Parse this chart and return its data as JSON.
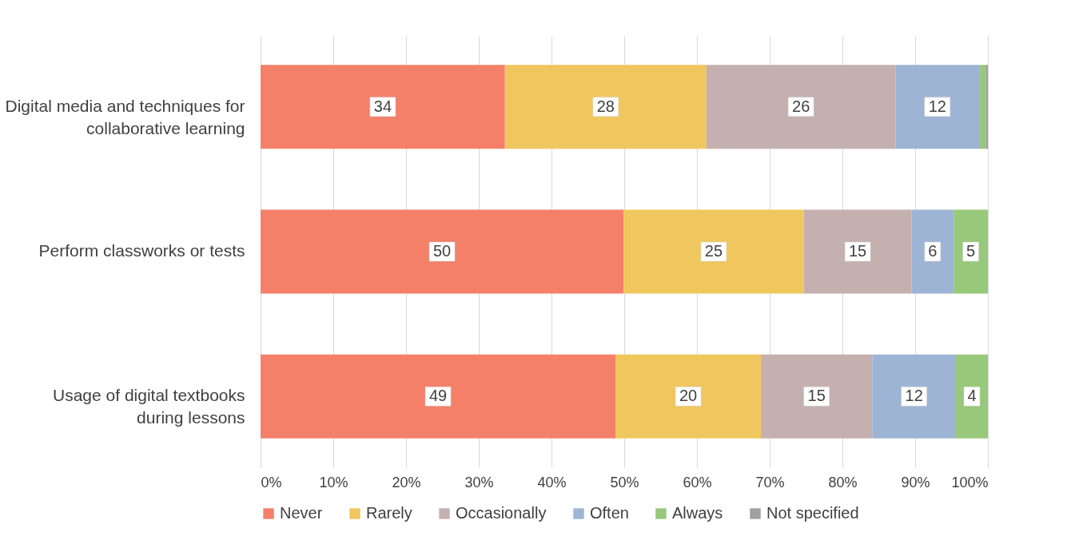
{
  "chart_data": {
    "type": "bar",
    "orientation": "horizontal",
    "stacked": true,
    "categories": [
      "Digital media and techniques for collaborative learning",
      "Perform classworks or tests",
      "Usage of digital textbooks during lessons"
    ],
    "series": [
      {
        "name": "Never",
        "color": "#f4806a",
        "values": [
          33.6,
          49.9,
          48.8
        ],
        "value_labels": [
          "34",
          "50",
          "49"
        ]
      },
      {
        "name": "Rarely",
        "color": "#f0c75e",
        "values": [
          27.7,
          24.8,
          20.0
        ],
        "value_labels": [
          "28",
          "25",
          "20"
        ]
      },
      {
        "name": "Occasionally",
        "color": "#c4b0af",
        "values": [
          26.0,
          14.8,
          15.3
        ],
        "value_labels": [
          "26",
          "15",
          "15"
        ]
      },
      {
        "name": "Often",
        "color": "#9eb4d4",
        "values": [
          11.5,
          5.8,
          11.5
        ],
        "value_labels": [
          "12",
          "6",
          "12"
        ]
      },
      {
        "name": "Always",
        "color": "#98c87a",
        "values": [
          0.9,
          4.7,
          4.4
        ],
        "value_labels": [
          null,
          "5",
          "4"
        ]
      },
      {
        "name": "Not specified",
        "color": "#a0a0a0",
        "values": [
          0.3,
          null,
          null
        ],
        "value_labels": [
          null,
          null,
          null
        ]
      }
    ],
    "xlim": [
      0,
      100
    ],
    "xticks": [
      {
        "value": 0,
        "label": "0%"
      },
      {
        "value": 10,
        "label": "10%"
      },
      {
        "value": 20,
        "label": "20%"
      },
      {
        "value": 30,
        "label": "30%"
      },
      {
        "value": 40,
        "label": "40%"
      },
      {
        "value": 50,
        "label": "50%"
      },
      {
        "value": 60,
        "label": "60%"
      },
      {
        "value": 70,
        "label": "70%"
      },
      {
        "value": 80,
        "label": "80%"
      },
      {
        "value": 90,
        "label": "90%"
      },
      {
        "value": 100,
        "label": "100%"
      }
    ],
    "grid": "x",
    "legend": "bottom"
  }
}
